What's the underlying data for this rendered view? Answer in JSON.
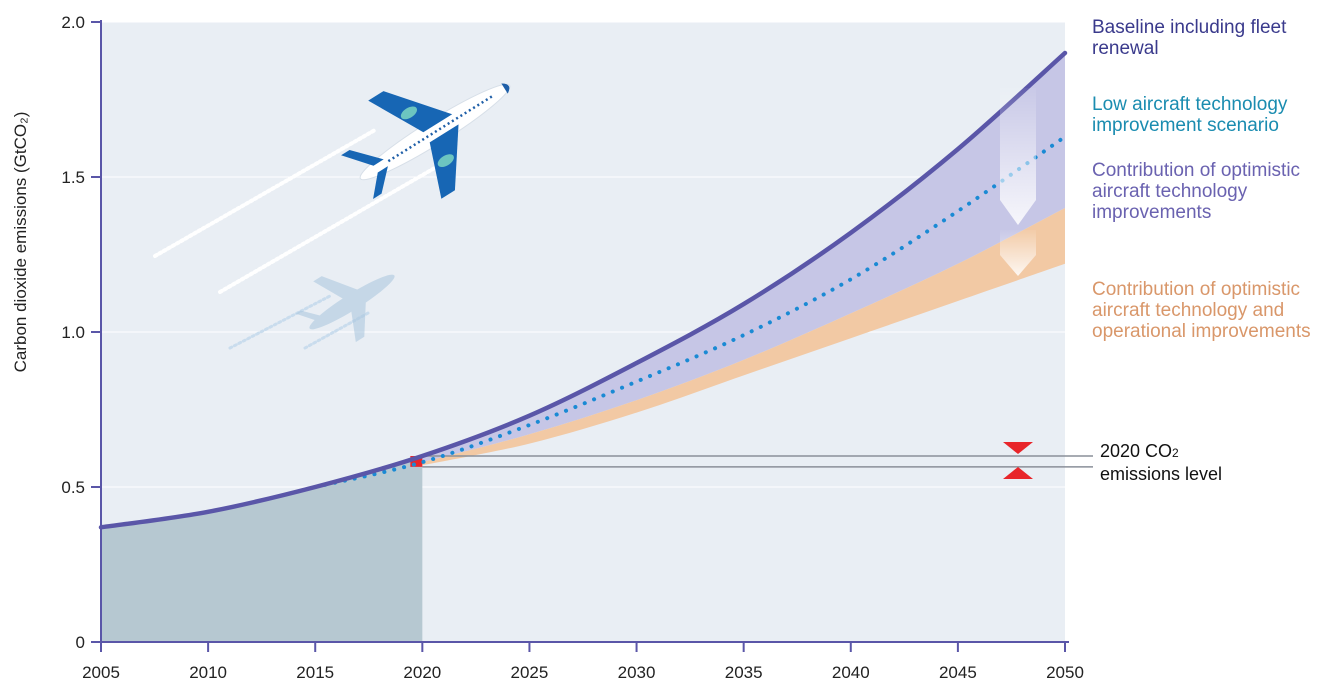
{
  "chart_data": {
    "type": "area",
    "ylabel": "Carbon dioxide emissions  (GtCO₂)",
    "x_ticks": [
      "2005",
      "2010",
      "2015",
      "2020",
      "2025",
      "2030",
      "2035",
      "2040",
      "2045",
      "2050"
    ],
    "y_ticks": [
      "0",
      "0.5",
      "1.0",
      "1.5",
      "2.0"
    ],
    "xlim": [
      2005,
      2050
    ],
    "ylim": [
      0,
      2.0
    ],
    "grid": true,
    "series": [
      {
        "name": "Baseline including fleet renewal",
        "color": "#5a56a8",
        "x": [
          2005,
          2010,
          2015,
          2020,
          2025,
          2030,
          2035,
          2040,
          2045,
          2050
        ],
        "values": [
          0.37,
          0.42,
          0.5,
          0.6,
          0.73,
          0.9,
          1.09,
          1.32,
          1.59,
          1.9
        ]
      },
      {
        "name": "Low aircraft technology improvement scenario",
        "color": "#1a8ad4",
        "x": [
          2015,
          2020,
          2025,
          2030,
          2035,
          2040,
          2045,
          2050
        ],
        "values": [
          0.5,
          0.58,
          0.7,
          0.84,
          0.99,
          1.17,
          1.39,
          1.63
        ]
      },
      {
        "name": "Contribution of optimistic aircraft technology improvements",
        "color": "#c6c6e6",
        "x": [
          2020,
          2025,
          2030,
          2035,
          2040,
          2045,
          2050
        ],
        "values": [
          0.58,
          0.67,
          0.78,
          0.91,
          1.06,
          1.22,
          1.4
        ]
      },
      {
        "name": "Contribution of optimistic aircraft technology and operational improvements",
        "color": "#f2c9a4",
        "x": [
          2020,
          2025,
          2030,
          2035,
          2040,
          2045,
          2050
        ],
        "values": [
          0.57,
          0.64,
          0.74,
          0.86,
          0.98,
          1.1,
          1.22
        ]
      }
    ],
    "reference_lines": [
      {
        "label": "2020 CO₂ emissions level",
        "values": [
          0.6,
          0.565
        ]
      }
    ],
    "historical_shading_until": 2020
  },
  "legend": {
    "baseline": "Baseline including fleet renewal",
    "low_tech": "Low aircraft technology improvement scenario",
    "tech": "Contribution of optimistic aircraft technology improvements",
    "ops": "Contribution of optimistic aircraft technology and operational improvements",
    "level_line1": "2020 CO",
    "level_sub": "2",
    "level_line2": "emissions level"
  },
  "colors": {
    "plot_bg": "#e9eef4",
    "historical": "#b6c8d1",
    "baseline": "#5a56a8",
    "low_tech": "#1a8ad4",
    "tech_band": "#c6c6e6",
    "ops_band": "#f2c9a4",
    "marker": "#e8252a",
    "axis": "#5a56a8"
  },
  "icons": [
    "airplane-icon",
    "airplane-shadow-icon",
    "reduction-arrow-icon"
  ]
}
